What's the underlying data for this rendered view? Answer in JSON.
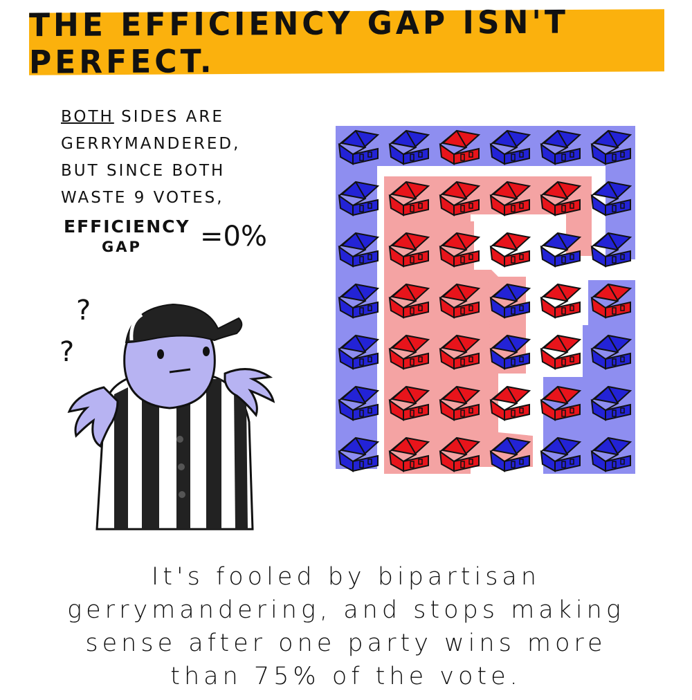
{
  "banner": {
    "title": "THE EFFICIENCY GAP ISN'T PERFECT."
  },
  "note": {
    "line1_emph": "BOTH",
    "line1_rest": " SIDES ARE",
    "line2": "GERRYMANDERED,",
    "line3": "BUT SINCE BOTH",
    "line4": "WASTE 9 VOTES,",
    "metric_label_1": "EFFICIENCY",
    "metric_label_2": "GAP",
    "metric_value": "=0%"
  },
  "referee": {
    "question_marks": [
      "?",
      "?"
    ]
  },
  "map": {
    "colors": {
      "blue": "#2323d6",
      "red": "#e8141b",
      "blue_district": "#8e8ef0",
      "red_district": "#f4a3a3"
    },
    "houses": [
      [
        "B",
        "B",
        "R",
        "B",
        "B",
        "B"
      ],
      [
        "B",
        "R",
        "R",
        "R",
        "R",
        "B"
      ],
      [
        "B",
        "R",
        "R",
        "R",
        "B",
        "B"
      ],
      [
        "B",
        "R",
        "R",
        "B",
        "R",
        "R"
      ],
      [
        "B",
        "R",
        "R",
        "B",
        "R",
        "B"
      ],
      [
        "B",
        "R",
        "R",
        "R",
        "R",
        "B"
      ],
      [
        "B",
        "R",
        "R",
        "B",
        "B",
        "B"
      ]
    ]
  },
  "caption": {
    "line1": "It's fooled by bipartisan",
    "line2": "gerrymandering, and stops making",
    "line3": "sense after one party wins more",
    "line4": "than 75% of the vote."
  }
}
